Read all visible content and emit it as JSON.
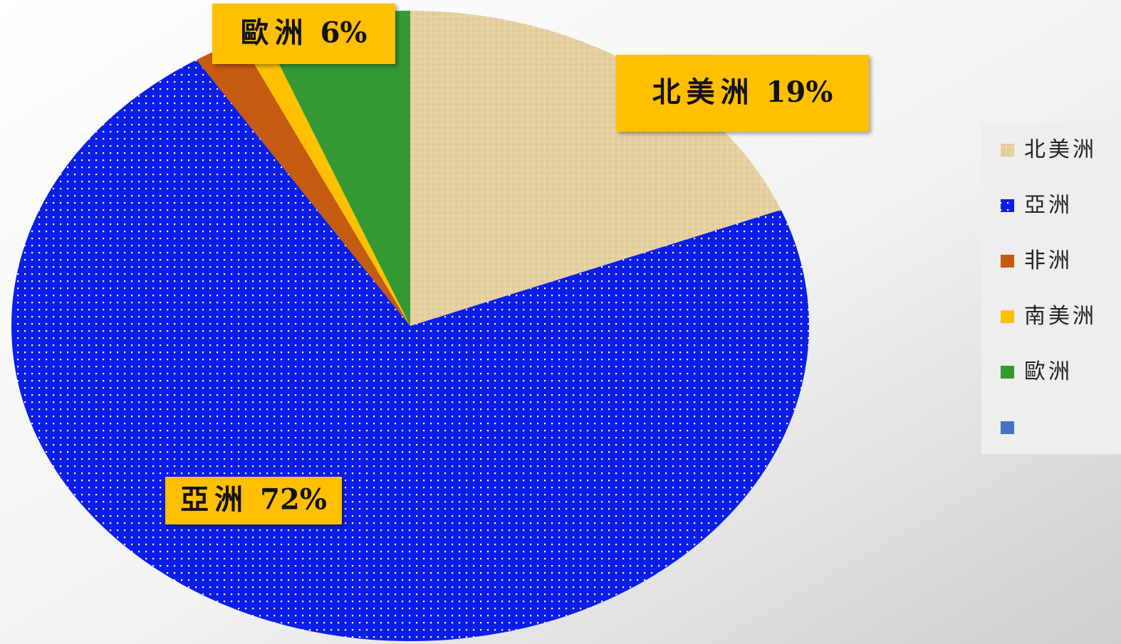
{
  "chart_data": {
    "type": "pie",
    "categories": [
      "北美洲",
      "亞洲",
      "非洲",
      "南美洲",
      "歐洲",
      null
    ],
    "values": [
      19,
      72,
      2,
      1,
      6,
      0
    ],
    "value_labels": [
      "19%",
      "72%",
      null,
      null,
      "6%",
      null
    ],
    "colors": [
      "#e6cf9f",
      "#0a1ee8",
      "#c55a11",
      "#ffc000",
      "#339933",
      "#4472c4"
    ],
    "legend": "right"
  }
}
